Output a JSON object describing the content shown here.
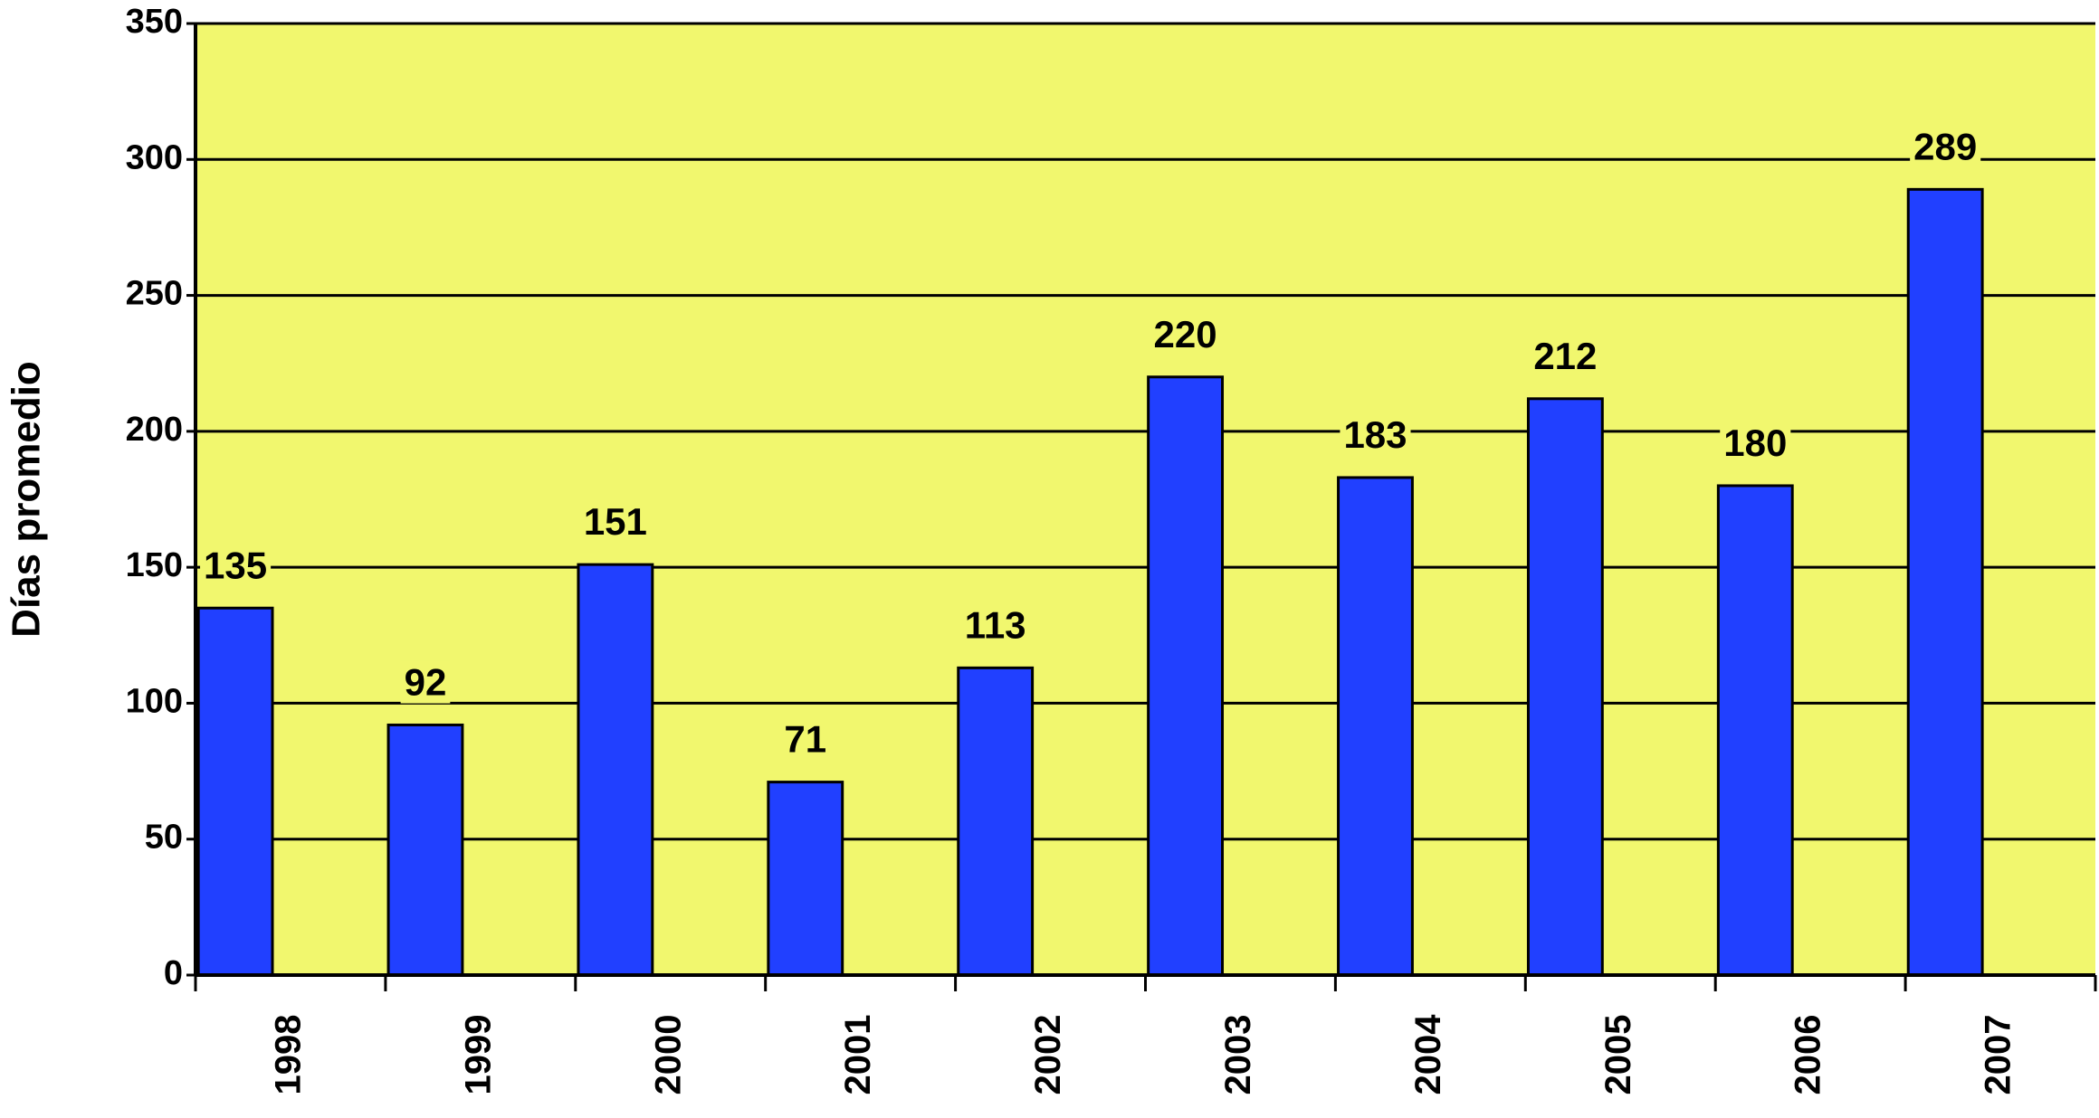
{
  "chart_data": {
    "type": "bar",
    "y_label": "Días promedio",
    "categories": [
      "1998",
      "1999",
      "2000",
      "2001",
      "2002",
      "2003",
      "2004",
      "2005",
      "2006",
      "2007"
    ],
    "values": [
      135,
      92,
      151,
      71,
      113,
      220,
      183,
      212,
      180,
      289
    ],
    "color": "#2140ff",
    "background": "#f1f76e",
    "ylim": [
      0,
      350
    ],
    "yticks": [
      0,
      50,
      100,
      150,
      200,
      250,
      300,
      350
    ],
    "grid": true
  }
}
